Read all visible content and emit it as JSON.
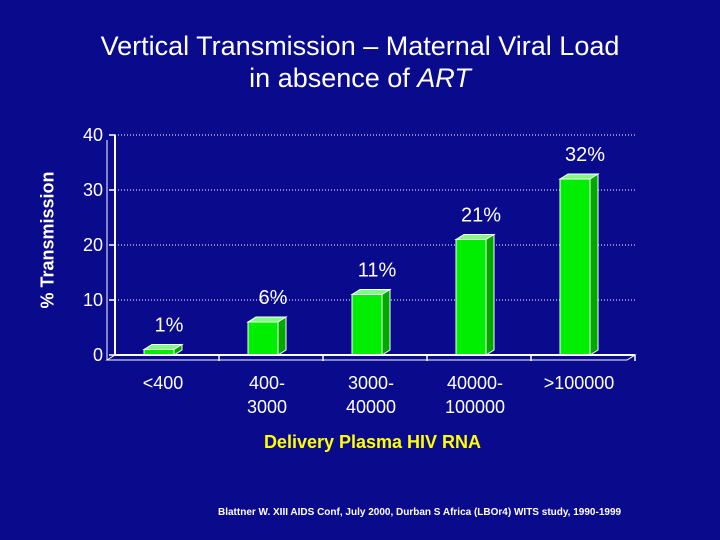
{
  "title_line1": "Vertical Transmission – Maternal Viral Load",
  "title_line2_prefix": "in absence of ",
  "title_line2_italic": "ART",
  "source_note": "Blattner W. XIII AIDS Conf, July 2000, Durban S Africa (LBOr4) WITS study, 1990-1999",
  "colors": {
    "background": "#0a0a8c",
    "bar_front": "#00ee00",
    "bar_side": "#00a800",
    "bar_top": "#7fff7f",
    "axis_label": "#ffff00",
    "text": "#ffffff"
  },
  "chart_data": {
    "type": "bar",
    "title": "Vertical Transmission – Maternal Viral Load in absence of ART",
    "xlabel": "Delivery Plasma HIV RNA",
    "ylabel": "% Transmission",
    "ylim": [
      0,
      40
    ],
    "yticks": [
      0,
      10,
      20,
      30,
      40
    ],
    "grid": true,
    "categories": [
      [
        "<400"
      ],
      [
        "400-",
        "3000"
      ],
      [
        "3000-",
        "40000"
      ],
      [
        "40000-",
        "100000"
      ],
      [
        ">100000"
      ]
    ],
    "values": [
      1,
      6,
      11,
      21,
      32
    ],
    "data_labels": [
      "1%",
      "6%",
      "11%",
      "21%",
      "32%"
    ]
  }
}
